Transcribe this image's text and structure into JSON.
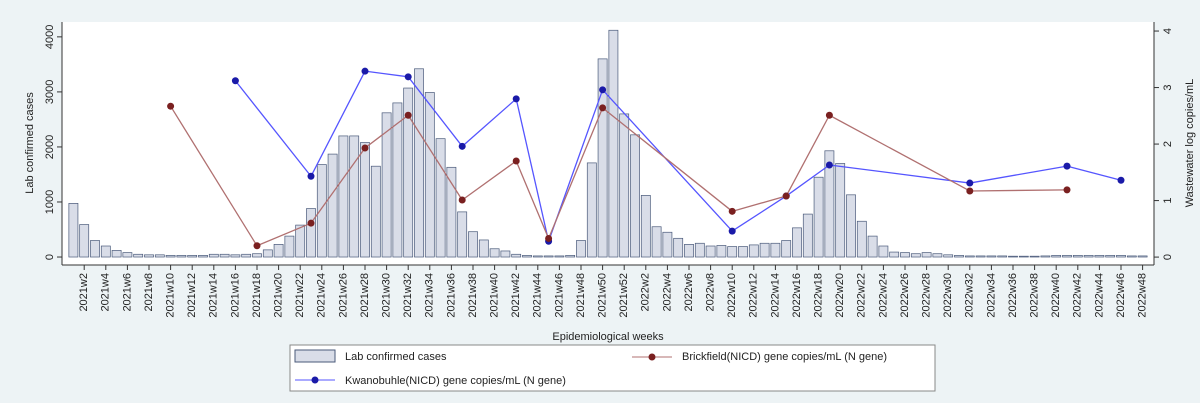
{
  "chart_data": {
    "type": "combo",
    "x_label": "Epidemiological weeks",
    "y_label": "Lab confirmed cases",
    "y2_label": "Wastewater log copies/mL",
    "categories": [
      null,
      "2021w2",
      null,
      "2021w4",
      null,
      "2021w6",
      null,
      "2021w8",
      null,
      "2021w10",
      null,
      "2021w12",
      null,
      "2021w14",
      null,
      "2021w16",
      null,
      "2021w18",
      null,
      "2021w20",
      null,
      "2021w22",
      null,
      "2021w24",
      null,
      "2021w26",
      null,
      "2021w28",
      null,
      "2021w30",
      null,
      "2021w32",
      null,
      "2021w34",
      null,
      "2021w36",
      null,
      "2021w38",
      null,
      "2021w40",
      null,
      "2021w42",
      null,
      "2021w44",
      null,
      "2021w46",
      null,
      "2021w48",
      null,
      "2021w50",
      null,
      "2021w52",
      null,
      "2022w2",
      null,
      "2022w4",
      null,
      "2022w6",
      null,
      "2022w8",
      null,
      "2022w10",
      null,
      "2022w12",
      null,
      "2022w14",
      null,
      "2022w16",
      null,
      "2022w18",
      null,
      "2022w20",
      null,
      "2022w22",
      null,
      "2022w24",
      null,
      "2022w26",
      null,
      "2022w28",
      null,
      "2022w30",
      null,
      "2022w32",
      null,
      "2022w34",
      null,
      "2022w36",
      null,
      "2022w38",
      null,
      "2022w40",
      null,
      "2022w42",
      null,
      "2022w44",
      null,
      "2022w46",
      null,
      "2022w48"
    ],
    "series": [
      {
        "name": "Lab confirmed cases",
        "type": "bar",
        "color": "#d9dde8",
        "edge": "#4a5a7a",
        "values": [
          975,
          590,
          300,
          200,
          120,
          80,
          50,
          40,
          40,
          30,
          30,
          30,
          30,
          50,
          50,
          40,
          50,
          60,
          130,
          230,
          380,
          580,
          880,
          1680,
          1870,
          2200,
          2200,
          2080,
          1650,
          2620,
          2800,
          3070,
          3420,
          2990,
          2150,
          1630,
          820,
          460,
          310,
          150,
          110,
          50,
          30,
          20,
          20,
          20,
          30,
          300,
          1710,
          3600,
          4120,
          2600,
          2220,
          1120,
          550,
          450,
          340,
          230,
          250,
          200,
          210,
          190,
          190,
          220,
          250,
          250,
          300,
          530,
          780,
          1450,
          1930,
          1700,
          1130,
          650,
          380,
          200,
          90,
          80,
          60,
          80,
          60,
          40,
          30,
          20,
          20,
          20,
          20,
          15,
          15,
          15,
          20,
          30,
          30,
          30,
          30,
          30,
          30,
          30,
          20,
          20
        ]
      },
      {
        "name": "Kwanobuhle(NICD) gene copies/mL (N gene)",
        "type": "line",
        "axis": "y2",
        "color": "#5555ff",
        "marker": "#1a1aa8",
        "values": [
          null,
          null,
          null,
          null,
          null,
          null,
          null,
          null,
          null,
          null,
          null,
          null,
          null,
          null,
          null,
          3.12,
          null,
          null,
          null,
          null,
          null,
          null,
          1.43,
          null,
          null,
          null,
          null,
          3.29,
          null,
          null,
          null,
          3.19,
          null,
          null,
          null,
          null,
          1.96,
          null,
          null,
          null,
          null,
          2.8,
          null,
          null,
          0.28,
          null,
          null,
          null,
          null,
          2.96,
          null,
          null,
          null,
          null,
          null,
          null,
          null,
          null,
          null,
          null,
          null,
          0.46,
          null,
          null,
          null,
          null,
          1.08,
          null,
          null,
          null,
          1.63,
          null,
          null,
          null,
          null,
          null,
          null,
          null,
          null,
          null,
          null,
          null,
          null,
          1.31,
          null,
          null,
          null,
          null,
          null,
          null,
          null,
          null,
          1.61,
          null,
          null,
          null,
          null,
          1.36,
          null,
          null
        ]
      },
      {
        "name": "Brickfield(NICD) gene copies/mL (N gene)",
        "type": "line",
        "axis": "y2",
        "color": "#b07070",
        "marker": "#7a2020",
        "values": [
          null,
          null,
          null,
          null,
          null,
          null,
          null,
          null,
          null,
          2.67,
          null,
          null,
          null,
          null,
          null,
          null,
          null,
          0.2,
          null,
          null,
          null,
          null,
          0.6,
          null,
          null,
          null,
          null,
          1.93,
          null,
          null,
          null,
          2.51,
          null,
          null,
          null,
          null,
          1.01,
          null,
          null,
          null,
          null,
          1.7,
          null,
          null,
          0.33,
          null,
          null,
          null,
          null,
          2.64,
          null,
          null,
          null,
          null,
          null,
          null,
          null,
          null,
          null,
          null,
          null,
          0.81,
          null,
          null,
          null,
          null,
          1.08,
          null,
          null,
          null,
          2.51,
          null,
          null,
          null,
          null,
          null,
          null,
          null,
          null,
          null,
          null,
          null,
          null,
          1.17,
          null,
          null,
          null,
          null,
          null,
          null,
          null,
          null,
          1.19,
          null,
          null,
          null,
          null,
          null,
          null,
          null
        ]
      }
    ],
    "ylim": [
      -145,
      4270
    ],
    "yticks": [
      0,
      1000,
      2000,
      3000,
      4000
    ],
    "y2lim": [
      -0.14,
      4.16
    ],
    "y2ticks": [
      0,
      1,
      2,
      3,
      4
    ],
    "legend": "bottom"
  }
}
